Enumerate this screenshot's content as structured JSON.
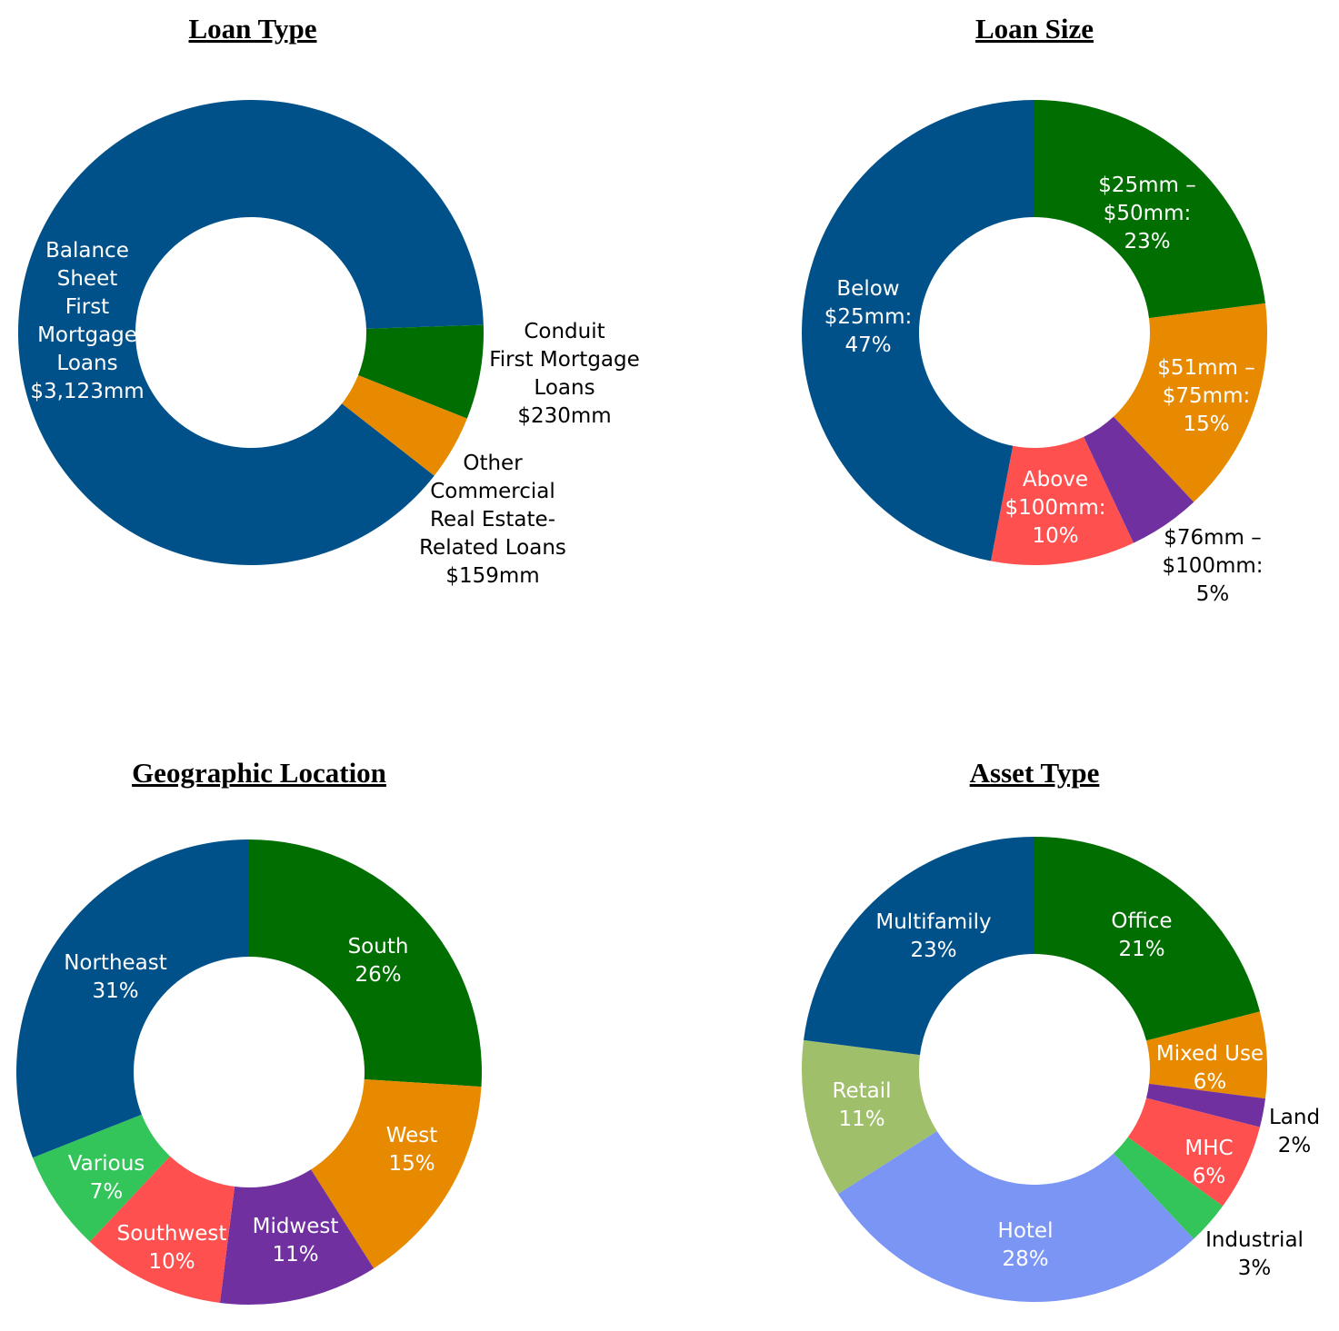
{
  "chart_data": [
    {
      "type": "pie",
      "subtype": "donut",
      "title": "Loan Type",
      "unit": "$mm",
      "slices": [
        {
          "name": "Balance Sheet First Mortgage Loans",
          "value": 3123,
          "label": [
            "Balance",
            "Sheet",
            "First",
            "Mortgage",
            "Loans",
            "$3,123mm"
          ],
          "color": "#00518a"
        },
        {
          "name": "Conduit First Mortgage Loans",
          "value": 230,
          "label": [
            "Conduit",
            "First Mortgage",
            "Loans",
            "$230mm"
          ],
          "color": "#006e00"
        },
        {
          "name": "Other Commercial Real Estate-Related Loans",
          "value": 159,
          "label": [
            "Other",
            "Commercial",
            "Real Estate-",
            "Related Loans",
            "$159mm"
          ],
          "color": "#e88a00"
        }
      ]
    },
    {
      "type": "pie",
      "subtype": "donut",
      "title": "Loan Size",
      "unit": "%",
      "slices": [
        {
          "name": "$25mm – $50mm",
          "value": 23,
          "label": [
            "$25mm –",
            "$50mm:",
            "23%"
          ],
          "color": "#006e00"
        },
        {
          "name": "$51mm – $75mm",
          "value": 15,
          "label": [
            "$51mm –",
            "$75mm:",
            "15%"
          ],
          "color": "#e88a00"
        },
        {
          "name": "$76mm – $100mm",
          "value": 5,
          "label": [
            "$76mm –",
            "$100mm:",
            "5%"
          ],
          "color": "#7030a0"
        },
        {
          "name": "Above $100mm",
          "value": 10,
          "label": [
            "Above",
            "$100mm:",
            "10%"
          ],
          "color": "#ff5050"
        },
        {
          "name": "Below $25mm",
          "value": 47,
          "label": [
            "Below",
            "$25mm:",
            "47%"
          ],
          "color": "#00518a"
        }
      ]
    },
    {
      "type": "pie",
      "subtype": "donut",
      "title": "Geographic Location",
      "unit": "%",
      "slices": [
        {
          "name": "South",
          "value": 26,
          "label": [
            "South",
            "26%"
          ],
          "color": "#006e00"
        },
        {
          "name": "West",
          "value": 15,
          "label": [
            "West",
            "15%"
          ],
          "color": "#e88a00"
        },
        {
          "name": "Midwest",
          "value": 11,
          "label": [
            "Midwest",
            "11%"
          ],
          "color": "#7030a0"
        },
        {
          "name": "Southwest",
          "value": 10,
          "label": [
            "Southwest",
            "10%"
          ],
          "color": "#ff5050"
        },
        {
          "name": "Various",
          "value": 7,
          "label": [
            "Various",
            "7%"
          ],
          "color": "#33c45a"
        },
        {
          "name": "Northeast",
          "value": 31,
          "label": [
            "Northeast",
            "31%"
          ],
          "color": "#00518a"
        }
      ]
    },
    {
      "type": "pie",
      "subtype": "donut",
      "title": "Asset Type",
      "unit": "%",
      "slices": [
        {
          "name": "Office",
          "value": 21,
          "label": [
            "Office",
            "21%"
          ],
          "color": "#006e00"
        },
        {
          "name": "Mixed Use",
          "value": 6,
          "label": [
            "Mixed Use",
            "6%"
          ],
          "color": "#e88a00"
        },
        {
          "name": "Land",
          "value": 2,
          "label": [
            "Land",
            "2%"
          ],
          "color": "#7030a0"
        },
        {
          "name": "MHC",
          "value": 6,
          "label": [
            "MHC",
            "6%"
          ],
          "color": "#ff5050"
        },
        {
          "name": "Industrial",
          "value": 3,
          "label": [
            "Industrial",
            "3%"
          ],
          "color": "#33c45a"
        },
        {
          "name": "Hotel",
          "value": 28,
          "label": [
            "Hotel",
            "28%"
          ],
          "color": "#7b95f5"
        },
        {
          "name": "Retail",
          "value": 11,
          "label": [
            "Retail",
            "11%"
          ],
          "color": "#9fbf6a"
        },
        {
          "name": "Multifamily",
          "value": 23,
          "label": [
            "Multifamily",
            "23%"
          ],
          "color": "#00518a"
        }
      ]
    }
  ]
}
